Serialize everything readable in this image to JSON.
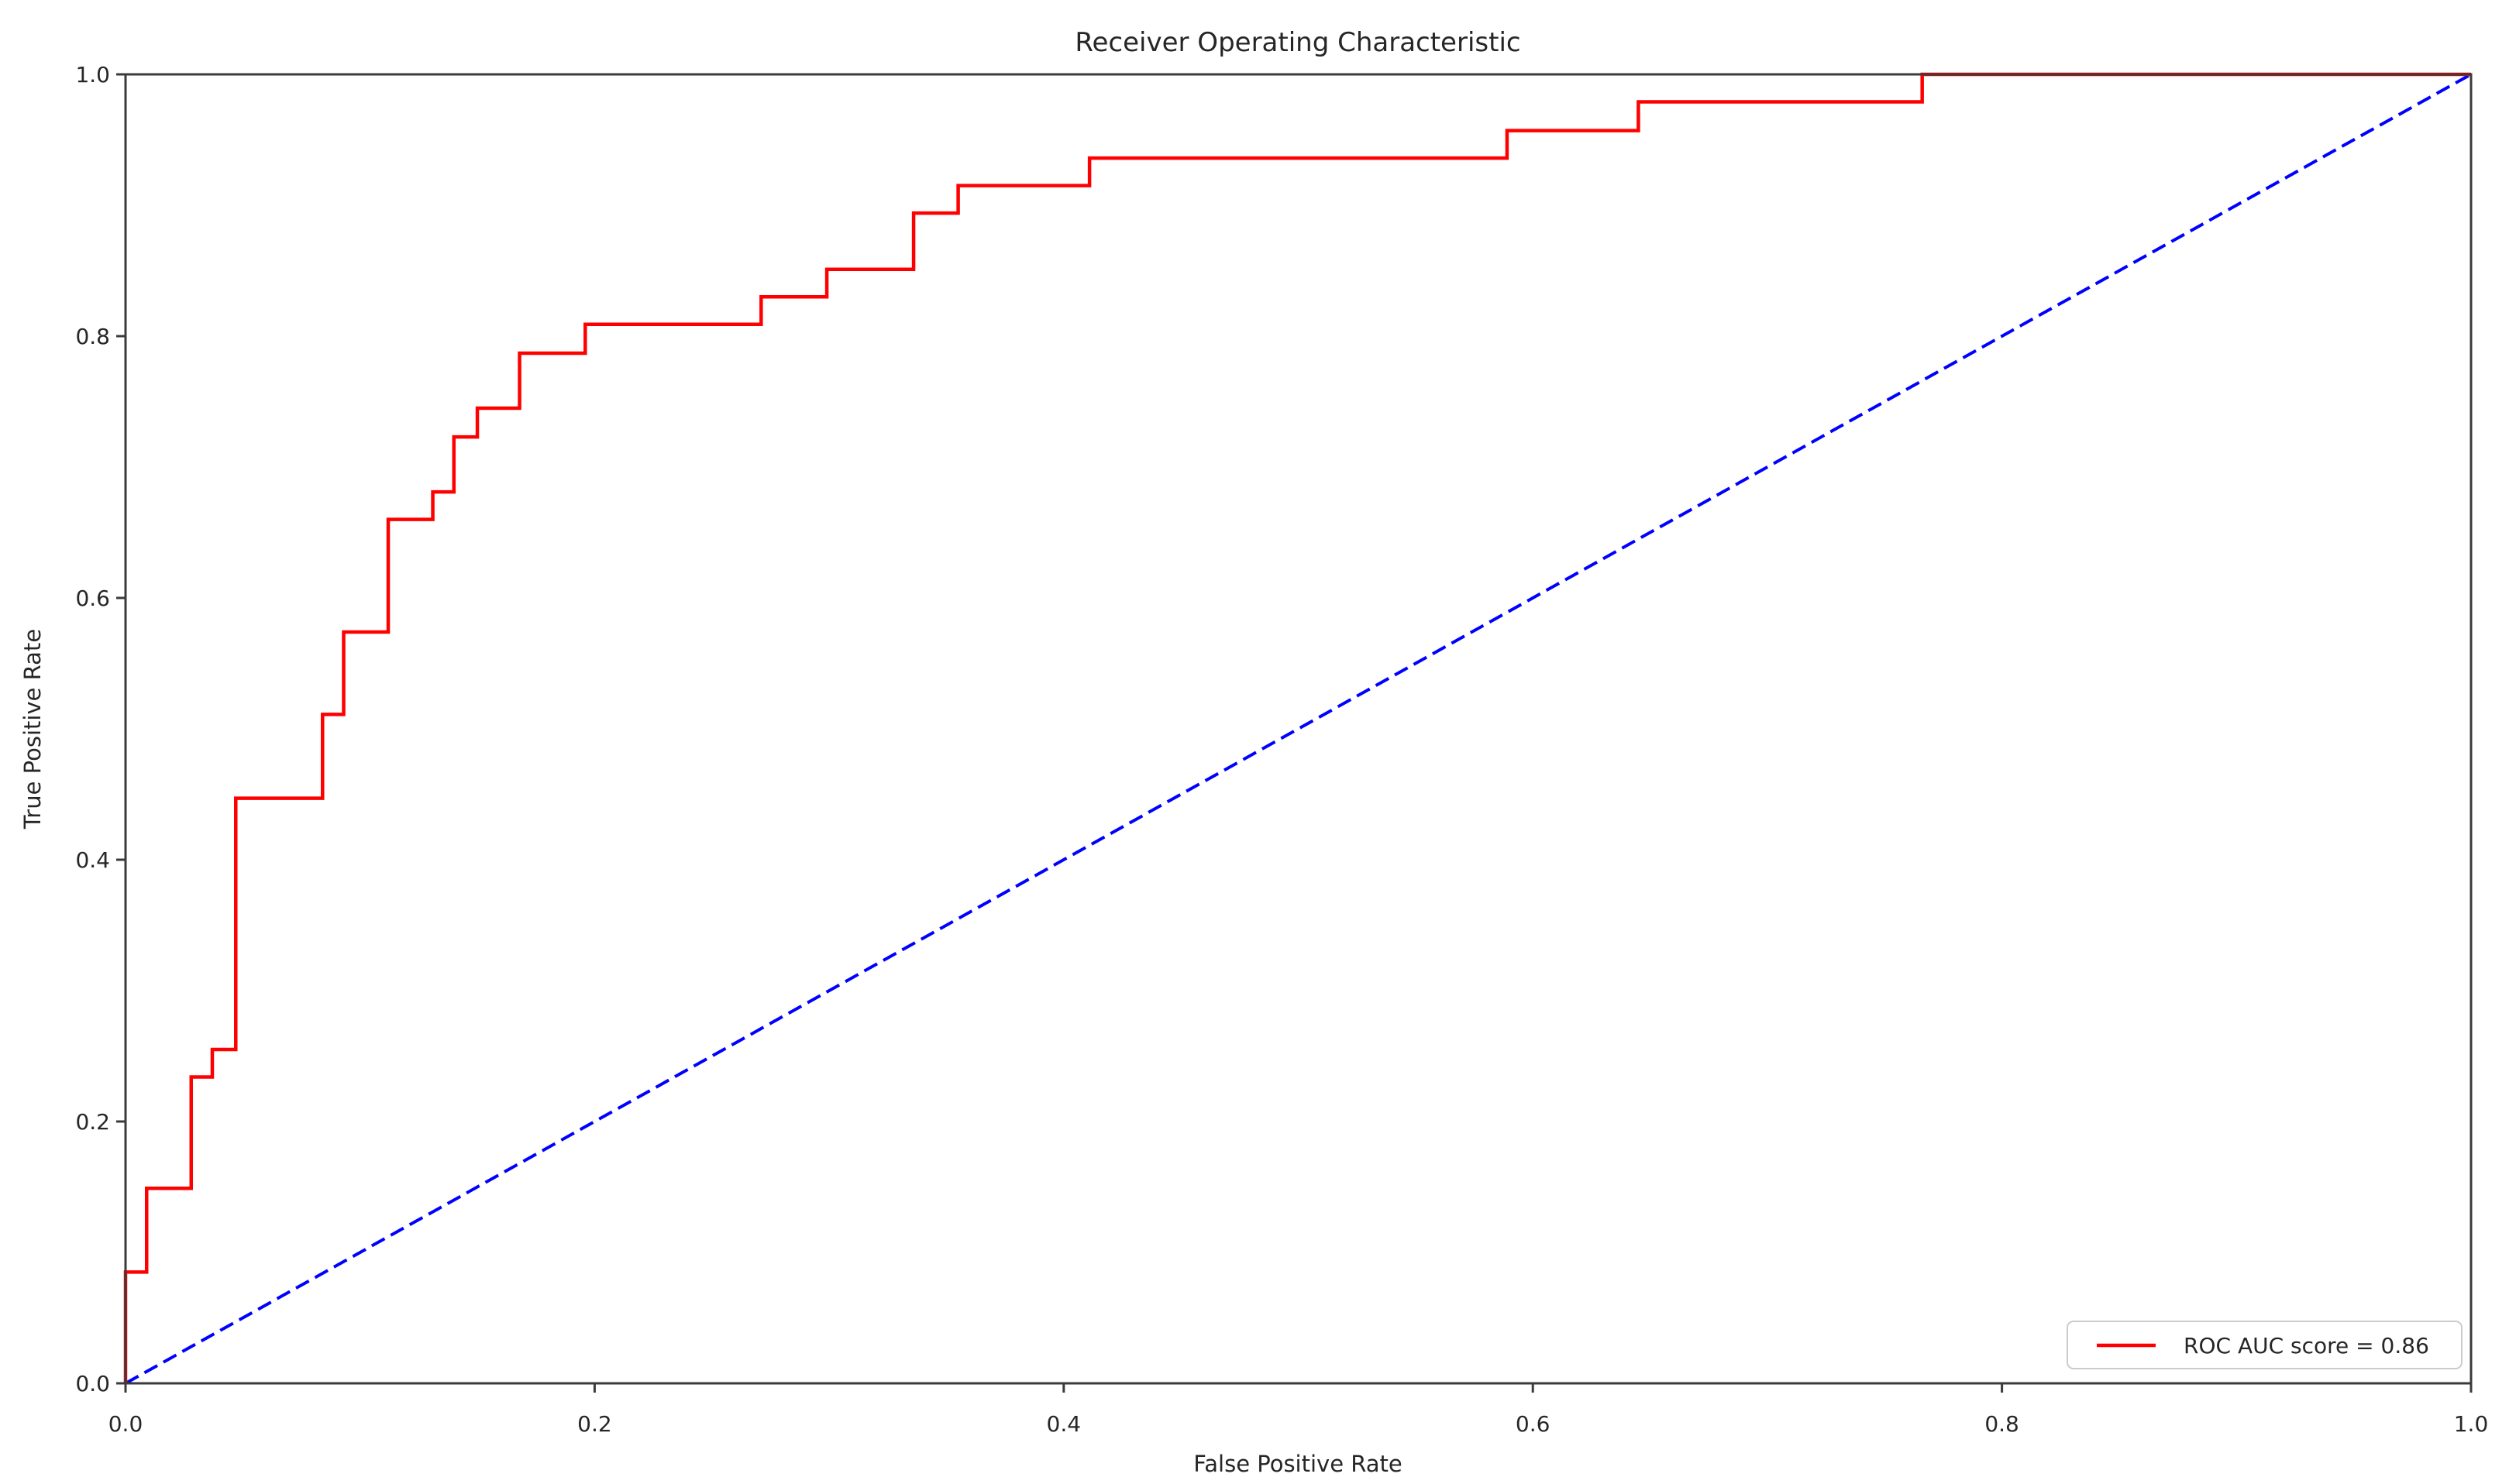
{
  "chart_data": {
    "type": "line",
    "title": "Receiver Operating Characteristic",
    "xlabel": "False Positive Rate",
    "ylabel": "True Positive Rate",
    "xlim": [
      0.0,
      1.0
    ],
    "ylim": [
      0.0,
      1.0
    ],
    "grid": false,
    "x_ticks": {
      "values": [
        0.0,
        0.2,
        0.4,
        0.6,
        0.8,
        1.0
      ],
      "labels": [
        "0.0",
        "0.2",
        "0.4",
        "0.6",
        "0.8",
        "1.0"
      ]
    },
    "y_ticks": {
      "values": [
        0.0,
        0.2,
        0.4,
        0.6,
        0.8,
        1.0
      ],
      "labels": [
        "0.0",
        "0.2",
        "0.4",
        "0.6",
        "0.8",
        "1.0"
      ]
    },
    "series": [
      {
        "name": "roc-curve",
        "color": "#ff0000",
        "style": "solid",
        "shape": "step",
        "points": [
          [
            0.0,
            0.0
          ],
          [
            0.0,
            0.085
          ],
          [
            0.009,
            0.085
          ],
          [
            0.009,
            0.149
          ],
          [
            0.028,
            0.149
          ],
          [
            0.028,
            0.234
          ],
          [
            0.037,
            0.234
          ],
          [
            0.037,
            0.255
          ],
          [
            0.047,
            0.255
          ],
          [
            0.047,
            0.447
          ],
          [
            0.084,
            0.447
          ],
          [
            0.084,
            0.511
          ],
          [
            0.093,
            0.511
          ],
          [
            0.093,
            0.574
          ],
          [
            0.112,
            0.574
          ],
          [
            0.112,
            0.66
          ],
          [
            0.131,
            0.66
          ],
          [
            0.131,
            0.681
          ],
          [
            0.14,
            0.681
          ],
          [
            0.14,
            0.723
          ],
          [
            0.15,
            0.723
          ],
          [
            0.15,
            0.745
          ],
          [
            0.168,
            0.745
          ],
          [
            0.168,
            0.787
          ],
          [
            0.196,
            0.787
          ],
          [
            0.196,
            0.809
          ],
          [
            0.271,
            0.809
          ],
          [
            0.271,
            0.83
          ],
          [
            0.299,
            0.83
          ],
          [
            0.299,
            0.851
          ],
          [
            0.336,
            0.851
          ],
          [
            0.336,
            0.894
          ],
          [
            0.355,
            0.894
          ],
          [
            0.355,
            0.915
          ],
          [
            0.411,
            0.915
          ],
          [
            0.411,
            0.936
          ],
          [
            0.589,
            0.936
          ],
          [
            0.589,
            0.957
          ],
          [
            0.645,
            0.957
          ],
          [
            0.645,
            0.979
          ],
          [
            0.766,
            0.979
          ],
          [
            0.766,
            1.0
          ],
          [
            1.0,
            1.0
          ]
        ]
      },
      {
        "name": "chance-diagonal",
        "color": "#0000ff",
        "style": "dashed",
        "shape": "line",
        "points": [
          [
            0.0,
            0.0
          ],
          [
            1.0,
            1.0
          ]
        ]
      }
    ],
    "legend": {
      "position": "lower right",
      "label": "ROC AUC score = 0.86",
      "line_color": "#ff0000"
    },
    "auc_score": 0.86,
    "frame_color": "#3b3b3b",
    "background_color": "#ffffff"
  }
}
